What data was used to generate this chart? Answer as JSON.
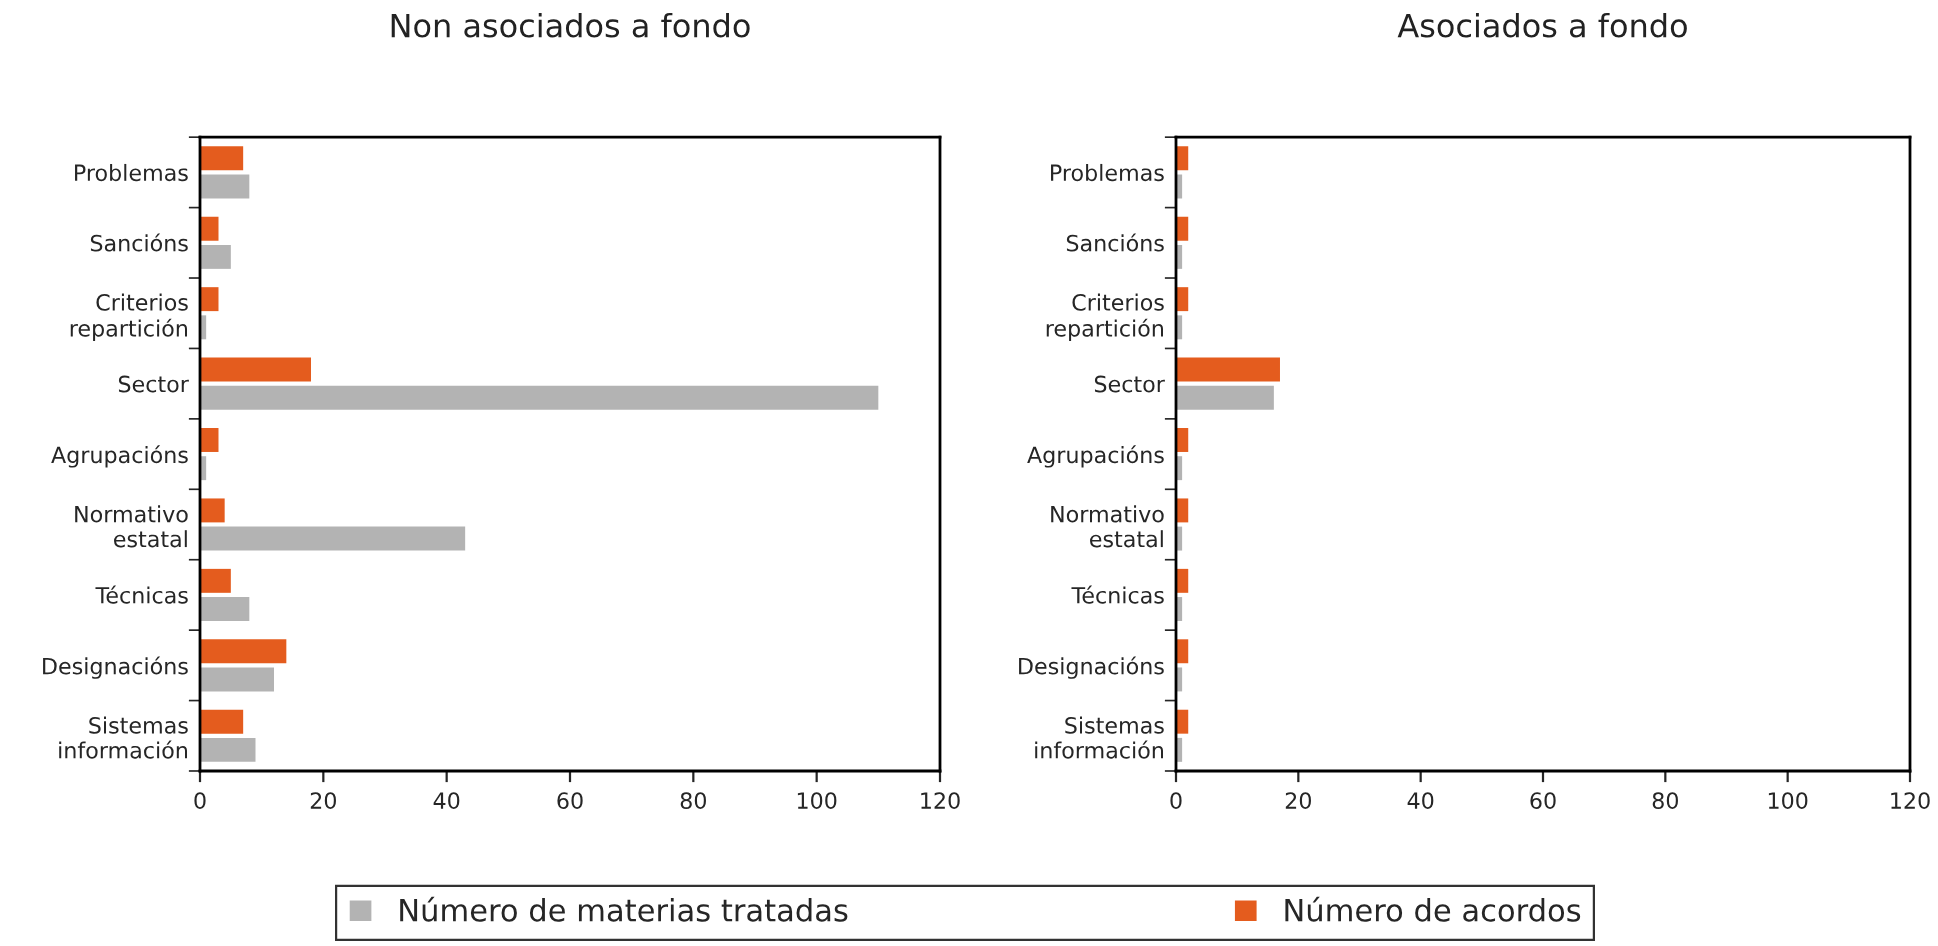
{
  "chart_data": [
    {
      "type": "bar",
      "orientation": "horizontal",
      "title": "Non asociados a fondo",
      "categories": [
        "Problemas",
        "Sancións",
        "Criterios\nrepartición",
        "Sector",
        "Agrupacións",
        "Normativo\nestatal",
        "Técnicas",
        "Designacións",
        "Sistemas\ninformación"
      ],
      "series": [
        {
          "name": "Número de materias tratadas",
          "color": "#b3b3b3",
          "values": [
            8,
            5,
            1,
            110,
            1,
            43,
            8,
            12,
            9
          ]
        },
        {
          "name": "Número de acordos",
          "color": "#e45c1e",
          "values": [
            7,
            3,
            3,
            18,
            3,
            4,
            5,
            14,
            7
          ]
        }
      ],
      "xlim": [
        0,
        120
      ],
      "xticks": [
        0,
        20,
        40,
        60,
        80,
        100,
        120
      ],
      "legend": "bottom"
    },
    {
      "type": "bar",
      "orientation": "horizontal",
      "title": "Asociados a fondo",
      "categories": [
        "Problemas",
        "Sancións",
        "Criterios\nrepartición",
        "Sector",
        "Agrupacións",
        "Normativo\nestatal",
        "Técnicas",
        "Designacións",
        "Sistemas\ninformación"
      ],
      "series": [
        {
          "color": "#b3b3b3",
          "values": [
            1,
            1,
            1,
            16,
            1,
            1,
            1,
            1,
            1
          ]
        },
        {
          "color": "#e45c1e",
          "values": [
            2,
            2,
            2,
            17,
            2,
            2,
            2,
            2,
            2
          ]
        }
      ],
      "xlim": [
        0,
        120
      ],
      "xticks": [
        0,
        20,
        40,
        60,
        80,
        100,
        120
      ]
    }
  ]
}
